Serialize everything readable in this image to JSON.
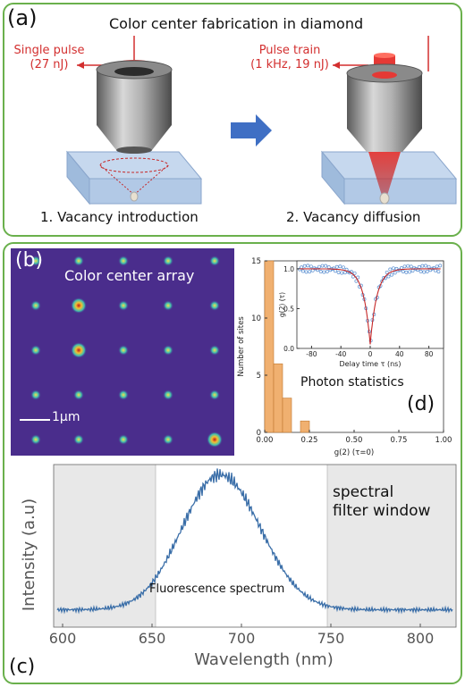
{
  "panel_a": {
    "letter": "(a)",
    "title": "Color center fabrication in diamond",
    "left_pulse_line1": "Single pulse",
    "left_pulse_line2": "(27 nJ)",
    "right_pulse_line1": "Pulse train",
    "right_pulse_line2": "(1 kHz, 19 nJ)",
    "step1": "1. Vacancy introduction",
    "step2": "2. Vacancy diffusion",
    "colors": {
      "laser": "#e53935",
      "frame": "#6ab04c",
      "arrow": "#3f6fc4"
    },
    "icons": [
      "objective-lens-icon",
      "diamond-slab-icon",
      "right-arrow-icon"
    ]
  },
  "panel_b": {
    "letter": "(b)",
    "title": "Color center array",
    "scalebar": "1µm",
    "array_rows": 5,
    "array_cols": 5,
    "bright_sites": [
      [
        1,
        1
      ],
      [
        2,
        1
      ],
      [
        4,
        4
      ]
    ]
  },
  "panel_d": {
    "letter": "(d)",
    "label": "Photon statistics",
    "inset_ylabel": "g(2) (τ)",
    "inset_xlabel": "Delay time τ (ns)"
  },
  "panel_c": {
    "letter": "(c)",
    "label": "Fluorescence spectrum",
    "filter_label_line1": "spectral",
    "filter_label_line2": "filter window"
  },
  "chart_data": [
    {
      "type": "bar",
      "panel": "d",
      "ylabel": "Number of sites",
      "xlabel": "g(2) (τ=0)",
      "xlim": [
        0,
        1.0
      ],
      "ylim": [
        0,
        15
      ],
      "xticks": [
        "0.00",
        "0.25",
        "0.50",
        "0.75",
        "1.00"
      ],
      "yticks": [
        "0",
        "5",
        "10",
        "15"
      ],
      "bin_width": 0.05,
      "bin_starts": [
        0.0,
        0.05,
        0.1,
        0.15,
        0.2
      ],
      "values": [
        15,
        6,
        3,
        0,
        1
      ],
      "color": "#f0b070"
    },
    {
      "type": "line",
      "panel": "d-inset",
      "xlabel": "Delay time τ (ns)",
      "xlim": [
        -100,
        100
      ],
      "ylim": [
        0,
        1.1
      ],
      "xticks": [
        "-80",
        "-40",
        "0",
        "40",
        "80"
      ],
      "yticks": [
        "0.0",
        "0.5",
        "1.0"
      ],
      "fit_dip_depth": 0.95,
      "fit_width_ns": 9
    },
    {
      "type": "line",
      "panel": "c",
      "xlabel": "Wavelength (nm)",
      "ylabel": "Intensity (a.u)",
      "xlim": [
        595,
        820
      ],
      "xticks": [
        "600",
        "650",
        "700",
        "750",
        "800"
      ],
      "filter_window_nm": [
        652,
        748
      ],
      "peak_nm": 688,
      "color": "#3a6ea8",
      "shade_color": "#e8e8e8"
    }
  ]
}
